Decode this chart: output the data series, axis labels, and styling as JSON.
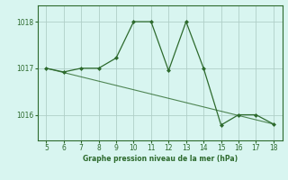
{
  "x": [
    5,
    6,
    7,
    8,
    9,
    10,
    11,
    12,
    13,
    14,
    15,
    16,
    17,
    18
  ],
  "y": [
    1017.0,
    1016.92,
    1017.0,
    1017.0,
    1017.22,
    1018.0,
    1018.0,
    1016.95,
    1018.0,
    1017.0,
    1015.78,
    1016.0,
    1016.0,
    1015.8
  ],
  "trend_x": [
    5,
    18
  ],
  "trend_y": [
    1017.0,
    1015.8
  ],
  "line_color": "#2d6a2d",
  "bg_color": "#d8f5f0",
  "grid_color": "#b0cfc8",
  "xlabel": "Graphe pression niveau de la mer (hPa)",
  "xlim": [
    4.5,
    18.5
  ],
  "ylim": [
    1015.45,
    1018.35
  ],
  "yticks": [
    1016,
    1017,
    1018
  ],
  "xticks": [
    5,
    6,
    7,
    8,
    9,
    10,
    11,
    12,
    13,
    14,
    15,
    16,
    17,
    18
  ]
}
